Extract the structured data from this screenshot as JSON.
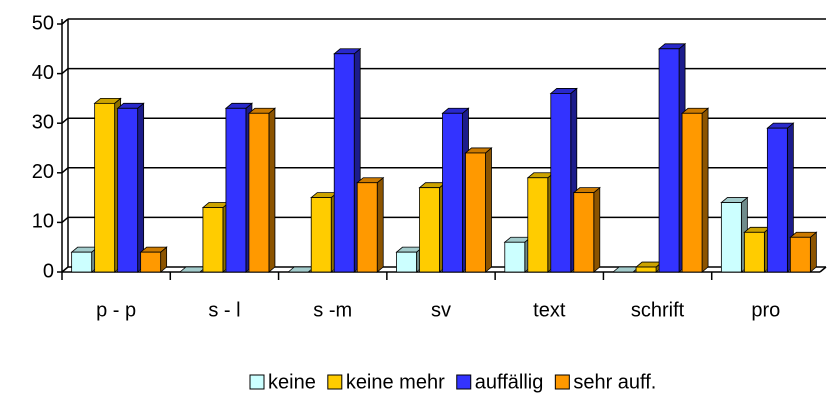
{
  "chart_data": {
    "type": "bar3d",
    "categories": [
      "p - p",
      "s - l",
      "s -m",
      "sv",
      "text",
      "schrift",
      "pro"
    ],
    "series": [
      {
        "name": "keine",
        "color": "#ccffff",
        "values": [
          4,
          0,
          0,
          4,
          6,
          0,
          14
        ]
      },
      {
        "name": "keine mehr",
        "color": "#ffcc00",
        "values": [
          34,
          13,
          15,
          17,
          19,
          1,
          8
        ]
      },
      {
        "name": "auffällig",
        "color": "#3333ff",
        "values": [
          33,
          33,
          44,
          32,
          36,
          45,
          29
        ]
      },
      {
        "name": "sehr auff.",
        "color": "#ff9900",
        "values": [
          4,
          32,
          18,
          24,
          16,
          32,
          7
        ]
      }
    ],
    "ylim": [
      0,
      50
    ],
    "yticks": [
      0,
      10,
      20,
      30,
      40,
      50
    ],
    "grid": true,
    "legend": "bottom"
  }
}
